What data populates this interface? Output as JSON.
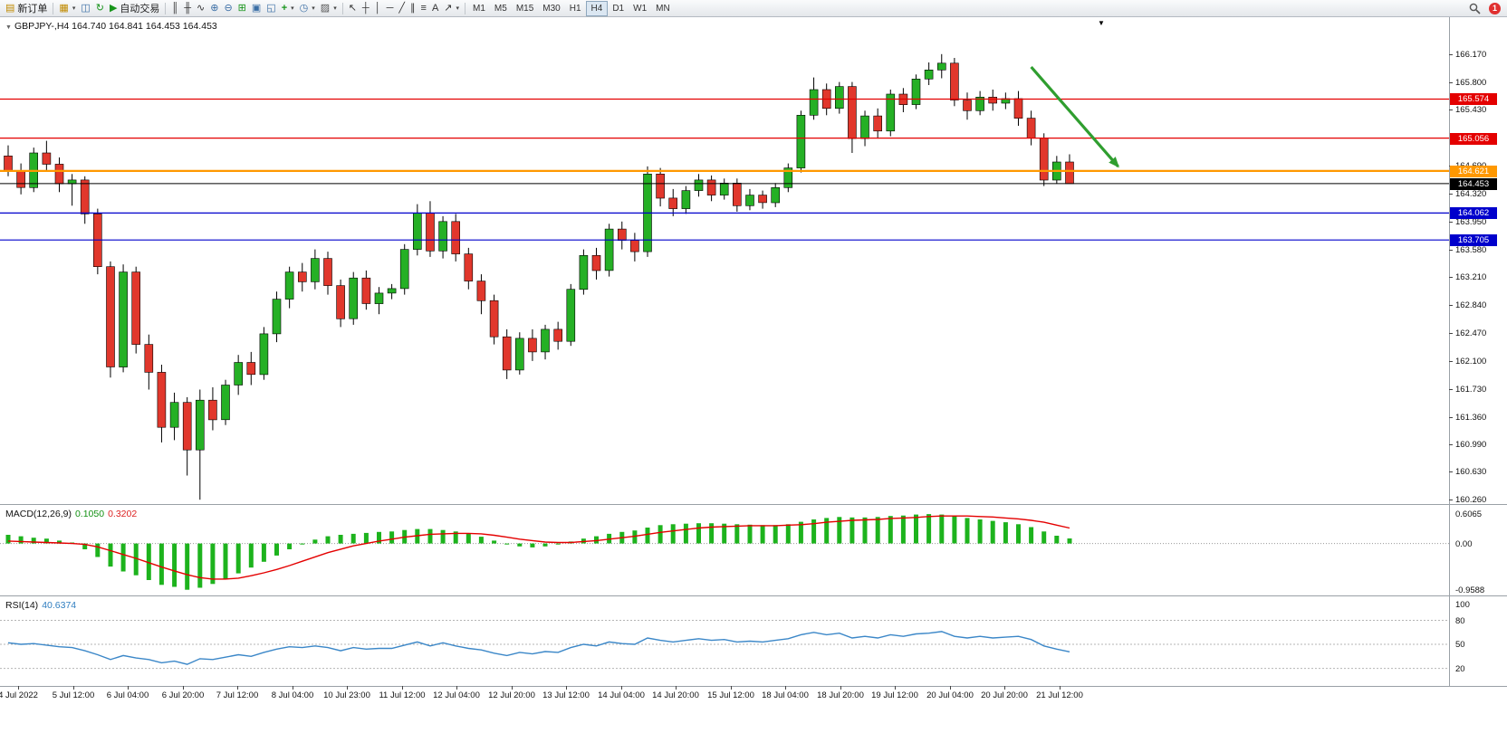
{
  "toolbar": {
    "new_order": "新订单",
    "autotrading": "自动交易",
    "timeframes": [
      "M1",
      "M5",
      "M15",
      "M30",
      "H1",
      "H4",
      "D1",
      "W1",
      "MN"
    ],
    "active_timeframe": "H4",
    "notification_count": "1"
  },
  "icons": {
    "new_order": "▤",
    "charts": "▦",
    "profiles": "◫",
    "refresh": "↻",
    "autotrading_play": "▶",
    "bar_chart": "║",
    "candlestick": "╫",
    "line_chart": "∿",
    "zoom_in": "⊕",
    "zoom_out": "⊖",
    "tile_windows": "⊞",
    "cascade": "▣",
    "arrange": "◱",
    "indicators": "+",
    "clock": "◷",
    "template": "▨",
    "cursor": "↖",
    "crosshair": "┼",
    "vertical_line": "│",
    "horizontal_line": "─",
    "trendline": "╱",
    "channel": "∥",
    "fibonacci": "≡",
    "text": "A",
    "arrows": "↗",
    "dropdown": "▾",
    "title_marker": "▼",
    "end_marker": "▼"
  },
  "chart": {
    "title": "GBPJPY-,H4",
    "ohlc": "164.740 164.841 164.453 164.453"
  },
  "chart_data": {
    "type": "candlestick",
    "symbol": "GBPJPY-",
    "timeframe": "H4",
    "current_ohlc": {
      "open": 164.74,
      "high": 164.841,
      "low": 164.453,
      "close": 164.453
    },
    "colors": {
      "bull": "#25b025",
      "bear": "#e1372c",
      "wick": "#000000",
      "background": "#ffffff"
    },
    "price_axis": {
      "ticks": [
        166.17,
        165.8,
        165.43,
        164.69,
        164.32,
        163.95,
        163.58,
        163.21,
        162.84,
        162.47,
        162.1,
        161.73,
        161.36,
        160.99,
        160.63,
        160.26
      ]
    },
    "hlines": [
      {
        "price": 165.574,
        "label": "165.574",
        "color": "#e40000",
        "w": 1.2
      },
      {
        "price": 165.056,
        "label": "165.056",
        "color": "#e40000",
        "w": 1.2
      },
      {
        "price": 164.621,
        "label": "164.621",
        "color": "#ff9800",
        "w": 2.2
      },
      {
        "price": 164.453,
        "label": "164.453",
        "color": "#000000",
        "w": 1,
        "current": true
      },
      {
        "price": 164.062,
        "label": "164.062",
        "color": "#0000cc",
        "w": 1.2
      },
      {
        "price": 163.705,
        "label": "163.705",
        "color": "#0000cc",
        "w": 1.2
      }
    ],
    "time_labels": [
      "4 Jul 2022",
      "5 Jul 12:00",
      "6 Jul 04:00",
      "6 Jul 20:00",
      "7 Jul 12:00",
      "8 Jul 04:00",
      "10 Jul 23:00",
      "11 Jul 12:00",
      "12 Jul 04:00",
      "12 Jul 20:00",
      "13 Jul 12:00",
      "14 Jul 04:00",
      "14 Jul 20:00",
      "15 Jul 12:00",
      "18 Jul 04:00",
      "18 Jul 20:00",
      "19 Jul 12:00",
      "20 Jul 04:00",
      "20 Jul 20:00",
      "21 Jul 12:00"
    ],
    "candles": [
      [
        164.82,
        164.96,
        164.55,
        164.62
      ],
      [
        164.62,
        164.72,
        164.31,
        164.4
      ],
      [
        164.4,
        164.93,
        164.34,
        164.86
      ],
      [
        164.86,
        165.02,
        164.62,
        164.71
      ],
      [
        164.71,
        164.8,
        164.34,
        164.45
      ],
      [
        164.45,
        164.58,
        164.16,
        164.5
      ],
      [
        164.5,
        164.55,
        163.92,
        164.05
      ],
      [
        164.05,
        164.12,
        163.25,
        163.35
      ],
      [
        163.35,
        163.42,
        161.88,
        162.02
      ],
      [
        162.02,
        163.38,
        161.95,
        163.28
      ],
      [
        163.28,
        163.35,
        162.2,
        162.32
      ],
      [
        162.32,
        162.45,
        161.72,
        161.95
      ],
      [
        161.95,
        162.05,
        161.02,
        161.22
      ],
      [
        161.22,
        161.68,
        161.05,
        161.55
      ],
      [
        161.55,
        161.62,
        160.58,
        160.92
      ],
      [
        160.92,
        161.72,
        160.26,
        161.58
      ],
      [
        161.58,
        161.75,
        161.18,
        161.32
      ],
      [
        161.32,
        161.85,
        161.25,
        161.78
      ],
      [
        161.78,
        162.18,
        161.65,
        162.08
      ],
      [
        162.08,
        162.22,
        161.78,
        161.92
      ],
      [
        161.92,
        162.55,
        161.85,
        162.46
      ],
      [
        162.46,
        163.02,
        162.35,
        162.92
      ],
      [
        162.92,
        163.35,
        162.8,
        163.28
      ],
      [
        163.28,
        163.4,
        163.02,
        163.15
      ],
      [
        163.15,
        163.58,
        163.05,
        163.46
      ],
      [
        163.46,
        163.55,
        162.98,
        163.1
      ],
      [
        163.1,
        163.18,
        162.55,
        162.66
      ],
      [
        162.66,
        163.28,
        162.58,
        163.2
      ],
      [
        163.2,
        163.3,
        162.78,
        162.86
      ],
      [
        162.86,
        163.08,
        162.72,
        163.0
      ],
      [
        163.0,
        163.12,
        162.92,
        163.06
      ],
      [
        163.06,
        163.65,
        162.98,
        163.58
      ],
      [
        163.58,
        164.18,
        163.5,
        164.06
      ],
      [
        164.06,
        164.22,
        163.48,
        163.56
      ],
      [
        163.56,
        164.02,
        163.46,
        163.95
      ],
      [
        163.95,
        164.05,
        163.42,
        163.52
      ],
      [
        163.52,
        163.6,
        163.05,
        163.16
      ],
      [
        163.16,
        163.25,
        162.72,
        162.9
      ],
      [
        162.9,
        162.98,
        162.32,
        162.42
      ],
      [
        162.42,
        162.52,
        161.86,
        161.98
      ],
      [
        161.98,
        162.48,
        161.92,
        162.4
      ],
      [
        162.4,
        162.52,
        162.1,
        162.22
      ],
      [
        162.22,
        162.58,
        162.12,
        162.52
      ],
      [
        162.52,
        162.62,
        162.25,
        162.36
      ],
      [
        162.36,
        163.12,
        162.3,
        163.05
      ],
      [
        163.05,
        163.58,
        162.98,
        163.5
      ],
      [
        163.5,
        163.6,
        163.18,
        163.3
      ],
      [
        163.3,
        163.92,
        163.22,
        163.85
      ],
      [
        163.85,
        163.95,
        163.58,
        163.7
      ],
      [
        163.7,
        163.8,
        163.42,
        163.55
      ],
      [
        163.55,
        164.68,
        163.48,
        164.58
      ],
      [
        164.58,
        164.66,
        164.15,
        164.26
      ],
      [
        164.26,
        164.38,
        164.02,
        164.12
      ],
      [
        164.12,
        164.42,
        164.05,
        164.36
      ],
      [
        164.36,
        164.58,
        164.28,
        164.5
      ],
      [
        164.5,
        164.56,
        164.22,
        164.3
      ],
      [
        164.3,
        164.52,
        164.24,
        164.46
      ],
      [
        164.46,
        164.52,
        164.08,
        164.16
      ],
      [
        164.16,
        164.38,
        164.1,
        164.3
      ],
      [
        164.3,
        164.36,
        164.12,
        164.2
      ],
      [
        164.2,
        164.46,
        164.14,
        164.4
      ],
      [
        164.4,
        164.72,
        164.34,
        164.66
      ],
      [
        164.66,
        165.42,
        164.6,
        165.36
      ],
      [
        165.36,
        165.86,
        165.3,
        165.7
      ],
      [
        165.7,
        165.78,
        165.36,
        165.45
      ],
      [
        165.45,
        165.8,
        165.38,
        165.74
      ],
      [
        165.74,
        165.8,
        164.86,
        165.05
      ],
      [
        165.05,
        165.42,
        164.95,
        165.35
      ],
      [
        165.35,
        165.45,
        165.05,
        165.15
      ],
      [
        165.15,
        165.7,
        165.08,
        165.64
      ],
      [
        165.64,
        165.72,
        165.4,
        165.5
      ],
      [
        165.5,
        165.9,
        165.44,
        165.84
      ],
      [
        165.84,
        166.06,
        165.76,
        165.96
      ],
      [
        165.96,
        166.17,
        165.85,
        166.05
      ],
      [
        166.05,
        166.12,
        165.48,
        165.56
      ],
      [
        165.56,
        165.66,
        165.3,
        165.42
      ],
      [
        165.42,
        165.68,
        165.36,
        165.6
      ],
      [
        165.6,
        165.7,
        165.42,
        165.52
      ],
      [
        165.52,
        165.66,
        165.44,
        165.58
      ],
      [
        165.58,
        165.68,
        165.22,
        165.32
      ],
      [
        165.32,
        165.42,
        164.96,
        165.06
      ],
      [
        165.06,
        165.12,
        164.42,
        164.5
      ],
      [
        164.5,
        164.82,
        164.45,
        164.74
      ],
      [
        164.74,
        164.841,
        164.453,
        164.453
      ]
    ],
    "arrow": {
      "bar1": 80,
      "price1": 166.0,
      "bar2": 86.8,
      "price2": 164.68,
      "color": "#2f9e2f"
    },
    "macd": {
      "name": "MACD(12,26,9)",
      "value_main": "0.1050",
      "value_signal": "0.3202",
      "histogram_color": "#1db31d",
      "signal_color": "#e40000",
      "scale": [
        {
          "v": 0.6065,
          "label": "0.6065"
        },
        {
          "v": 0,
          "label": "0.00"
        },
        {
          "v": -0.9588,
          "label": "-0.9588"
        }
      ],
      "histogram": [
        0.18,
        0.15,
        0.12,
        0.1,
        0.06,
        0.02,
        -0.12,
        -0.28,
        -0.48,
        -0.58,
        -0.66,
        -0.76,
        -0.86,
        -0.9,
        -0.96,
        -0.92,
        -0.84,
        -0.74,
        -0.62,
        -0.5,
        -0.38,
        -0.25,
        -0.12,
        -0.02,
        0.08,
        0.15,
        0.18,
        0.2,
        0.22,
        0.24,
        0.25,
        0.28,
        0.3,
        0.3,
        0.28,
        0.25,
        0.2,
        0.14,
        0.06,
        -0.02,
        -0.06,
        -0.08,
        -0.06,
        -0.02,
        0.04,
        0.1,
        0.15,
        0.2,
        0.24,
        0.27,
        0.33,
        0.38,
        0.4,
        0.41,
        0.42,
        0.42,
        0.41,
        0.4,
        0.39,
        0.38,
        0.38,
        0.4,
        0.45,
        0.5,
        0.53,
        0.55,
        0.54,
        0.54,
        0.55,
        0.57,
        0.58,
        0.6,
        0.61,
        0.6,
        0.57,
        0.53,
        0.5,
        0.47,
        0.44,
        0.4,
        0.34,
        0.25,
        0.16,
        0.105
      ],
      "signal": [
        0.05,
        0.04,
        0.03,
        0.02,
        0.01,
        0.0,
        -0.02,
        -0.07,
        -0.15,
        -0.23,
        -0.31,
        -0.4,
        -0.49,
        -0.57,
        -0.65,
        -0.71,
        -0.74,
        -0.74,
        -0.72,
        -0.67,
        -0.61,
        -0.54,
        -0.46,
        -0.37,
        -0.28,
        -0.19,
        -0.12,
        -0.05,
        0.0,
        0.05,
        0.09,
        0.13,
        0.16,
        0.19,
        0.2,
        0.21,
        0.21,
        0.2,
        0.17,
        0.13,
        0.09,
        0.06,
        0.03,
        0.02,
        0.02,
        0.04,
        0.06,
        0.09,
        0.12,
        0.15,
        0.19,
        0.23,
        0.26,
        0.29,
        0.32,
        0.34,
        0.35,
        0.36,
        0.37,
        0.37,
        0.37,
        0.38,
        0.39,
        0.41,
        0.44,
        0.46,
        0.48,
        0.49,
        0.5,
        0.52,
        0.53,
        0.54,
        0.56,
        0.57,
        0.57,
        0.57,
        0.56,
        0.55,
        0.53,
        0.51,
        0.48,
        0.44,
        0.38,
        0.3202
      ]
    },
    "rsi": {
      "name": "RSI(14)",
      "value": "40.6374",
      "color": "#3b87c8",
      "levels": [
        80,
        50,
        20
      ],
      "axis_labels": [
        {
          "v": 100,
          "label": "100"
        },
        {
          "v": 80,
          "label": "80"
        },
        {
          "v": 50,
          "label": "50"
        },
        {
          "v": 20,
          "label": "20"
        }
      ],
      "values": [
        52,
        50,
        51,
        49,
        47,
        46,
        42,
        37,
        31,
        36,
        33,
        31,
        27,
        29,
        25,
        32,
        31,
        34,
        37,
        35,
        40,
        44,
        47,
        46,
        48,
        46,
        42,
        46,
        44,
        45,
        45,
        49,
        53,
        48,
        52,
        48,
        45,
        43,
        39,
        36,
        40,
        38,
        41,
        40,
        46,
        50,
        48,
        53,
        51,
        50,
        58,
        55,
        53,
        55,
        57,
        55,
        56,
        53,
        54,
        53,
        55,
        57,
        62,
        65,
        62,
        64,
        58,
        60,
        58,
        62,
        60,
        63,
        64,
        66,
        60,
        58,
        60,
        58,
        59,
        60,
        56,
        48,
        44,
        40.64
      ]
    }
  }
}
